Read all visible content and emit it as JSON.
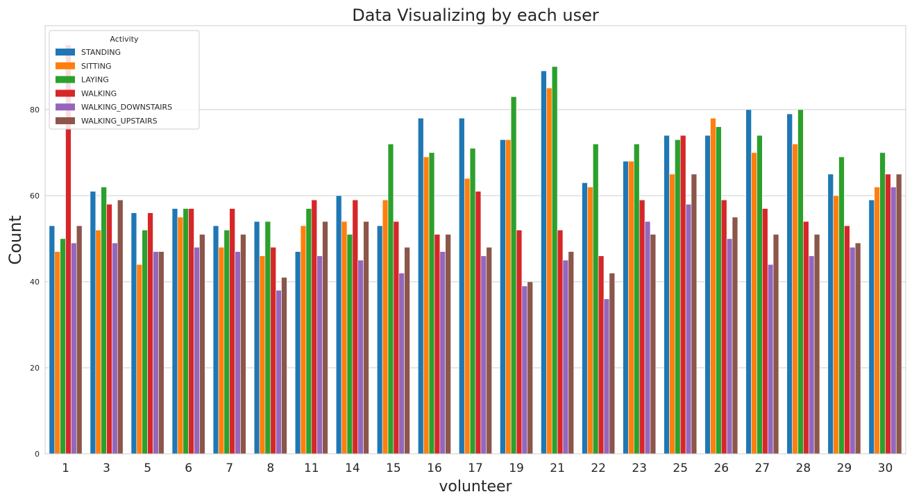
{
  "chart_data": {
    "type": "bar",
    "title": "Data Visualizing by each user",
    "xlabel": "volunteer",
    "ylabel": "Count",
    "ylim": [
      0,
      100
    ],
    "yticks": [
      0,
      20,
      40,
      60,
      80
    ],
    "grid": "horizontal",
    "legend_title": "Activity",
    "legend_position": "top-left",
    "categories": [
      "1",
      "3",
      "5",
      "6",
      "7",
      "8",
      "11",
      "14",
      "15",
      "16",
      "17",
      "19",
      "21",
      "22",
      "23",
      "25",
      "26",
      "27",
      "28",
      "29",
      "30"
    ],
    "series": [
      {
        "name": "STANDING",
        "color": "#1f77b4",
        "values": [
          53,
          61,
          56,
          57,
          53,
          54,
          47,
          60,
          53,
          78,
          78,
          73,
          89,
          63,
          68,
          74,
          74,
          80,
          79,
          65,
          59
        ]
      },
      {
        "name": "SITTING",
        "color": "#ff7f0e",
        "values": [
          47,
          52,
          44,
          55,
          48,
          46,
          53,
          54,
          59,
          69,
          64,
          73,
          85,
          62,
          68,
          65,
          78,
          70,
          72,
          60,
          62
        ]
      },
      {
        "name": "LAYING",
        "color": "#2ca02c",
        "values": [
          50,
          62,
          52,
          57,
          52,
          54,
          57,
          51,
          72,
          70,
          71,
          83,
          90,
          72,
          72,
          73,
          76,
          74,
          80,
          69,
          70
        ]
      },
      {
        "name": "WALKING",
        "color": "#d62728",
        "values": [
          95,
          58,
          56,
          57,
          57,
          48,
          59,
          59,
          54,
          51,
          61,
          52,
          52,
          46,
          59,
          74,
          59,
          57,
          54,
          53,
          65
        ]
      },
      {
        "name": "WALKING_DOWNSTAIRS",
        "color": "#9467bd",
        "values": [
          49,
          49,
          47,
          48,
          47,
          38,
          46,
          45,
          42,
          47,
          46,
          39,
          45,
          36,
          54,
          58,
          50,
          44,
          46,
          48,
          62
        ]
      },
      {
        "name": "WALKING_UPSTAIRS",
        "color": "#8c564b",
        "values": [
          53,
          59,
          47,
          51,
          51,
          41,
          54,
          54,
          48,
          51,
          48,
          40,
          47,
          42,
          51,
          65,
          55,
          51,
          51,
          49,
          65
        ]
      }
    ]
  }
}
